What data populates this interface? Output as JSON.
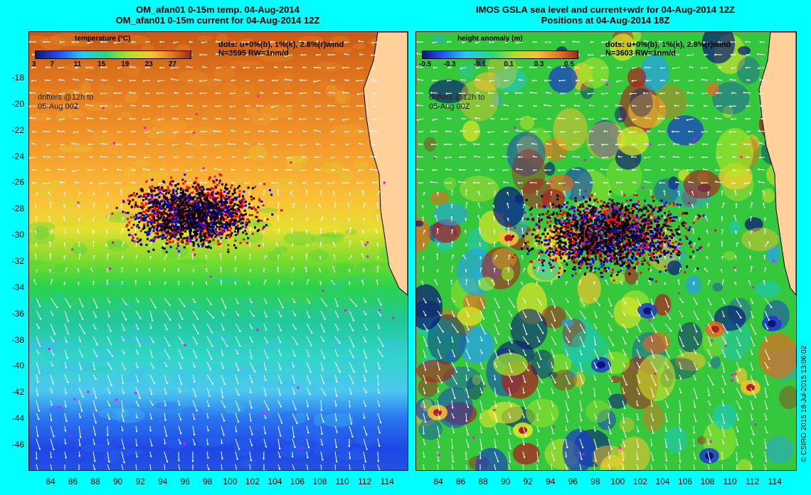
{
  "left_panel": {
    "title_line1": "OM_afan01 0-15m temp. 04-Aug-2014",
    "title_line2": "OM_afan01 0-15m current for 04-Aug-2014 12Z",
    "colorbar_label": "temperature (°C)",
    "colorbar_ticks": [
      "3",
      "7",
      "11",
      "15",
      "19",
      "23",
      "27"
    ],
    "dots_line1": "dots: u+0%(b), 1%(k), 2.8%(r)wind",
    "dots_line2": "N=3595 RW=1nm/d",
    "drifters_line1": "drifters @12h to",
    "drifters_line2": "05-Aug 00Z"
  },
  "right_panel": {
    "title_line1": "IMOS GSLA sea level and current+wdr for 04-Aug-2014 12Z",
    "title_line2": "Positions at 04-Aug-2014 18Z",
    "colorbar_label": "height anomaly (m)",
    "colorbar_ticks": [
      "-0.5",
      "-0.3",
      "-0.1",
      "0.1",
      "0.3",
      "0.5"
    ],
    "dots_line1": "dots: u+0%(b), 1%(k), 2.8%(r)wind",
    "dots_line2": "N=3603 RW=1nm/d",
    "drifters_line1": "drifters @12h to",
    "drifters_line2": "05-Aug 00Z"
  },
  "y_ticks": [
    "-18",
    "-20",
    "-22",
    "-24",
    "-26",
    "-28",
    "-30",
    "-32",
    "-34",
    "-36",
    "-38",
    "-40",
    "-42",
    "-44",
    "-46"
  ],
  "x_ticks": [
    "84",
    "86",
    "88",
    "90",
    "92",
    "94",
    "96",
    "98",
    "100",
    "102",
    "104",
    "106",
    "108",
    "110",
    "112",
    "114"
  ],
  "credit": "© CSIRO 2015   18-Jul-2015 13:06:02",
  "colors": {
    "background": "#00ffff",
    "land": "#ffd09a",
    "dot_blue": "#0000ff",
    "dot_black": "#000000",
    "dot_red": "#ff0000",
    "dot_magenta": "#ff00ff"
  },
  "map_extent": {
    "lon": [
      82.5,
      116
    ],
    "lat": [
      -48,
      -15
    ]
  }
}
